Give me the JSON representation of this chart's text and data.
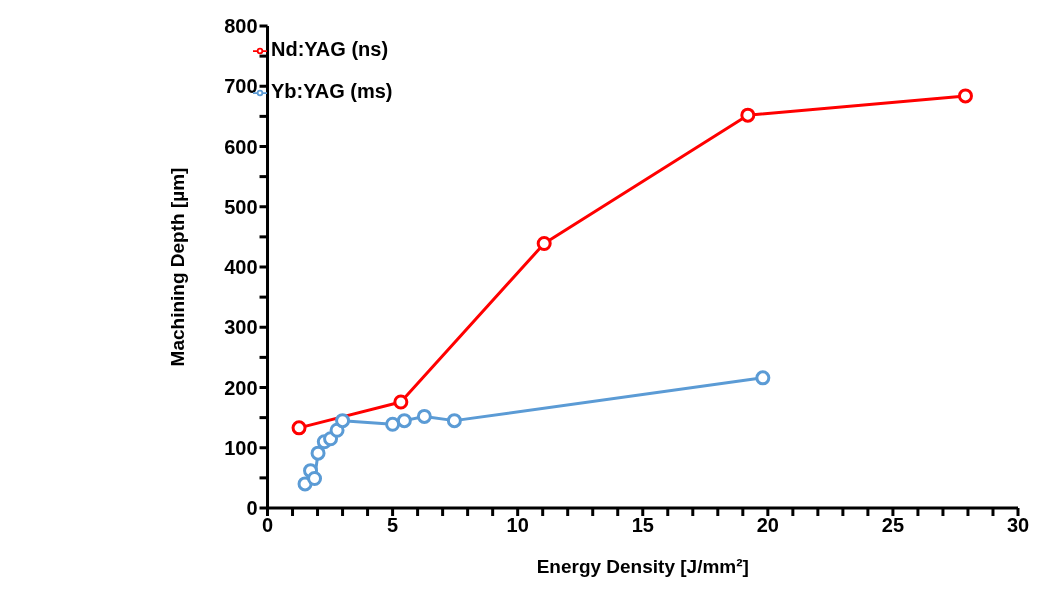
{
  "chart_data": {
    "type": "line",
    "xlabel": "Energy Density [J/mm²]",
    "ylabel": "Machining Depth [µm]",
    "xlim": [
      0,
      30
    ],
    "xticks": [
      0,
      {
        "value": 1,
        "label": null
      },
      {
        "value": 2,
        "label": null
      },
      {
        "value": 3,
        "label": null
      },
      {
        "value": 4,
        "label": null
      },
      5,
      {
        "value": 6,
        "label": null
      },
      {
        "value": 7,
        "label": null
      },
      {
        "value": 8,
        "label": null
      },
      {
        "value": 9,
        "label": null
      },
      10,
      {
        "value": 11,
        "label": null
      },
      {
        "value": 12,
        "label": null
      },
      {
        "value": 13,
        "label": null
      },
      {
        "value": 14,
        "label": null
      },
      15,
      {
        "value": 16,
        "label": null
      },
      {
        "value": 17,
        "label": null
      },
      {
        "value": 18,
        "label": null
      },
      {
        "value": 19,
        "label": null
      },
      20,
      {
        "value": 21,
        "label": null
      },
      {
        "value": 22,
        "label": null
      },
      {
        "value": 23,
        "label": null
      },
      {
        "value": 24,
        "label": null
      },
      25,
      {
        "value": 26,
        "label": null
      },
      {
        "value": 27,
        "label": null
      },
      {
        "value": 28,
        "label": null
      },
      {
        "value": 29,
        "label": null
      },
      30
    ],
    "ylim": [
      0,
      800
    ],
    "yticks": [
      0,
      {
        "value": 50,
        "label": null
      },
      100,
      {
        "value": 150,
        "label": null
      },
      200,
      {
        "value": 250,
        "label": null
      },
      300,
      {
        "value": 350,
        "label": null
      },
      400,
      {
        "value": 450,
        "label": null
      },
      500,
      {
        "value": 550,
        "label": null
      },
      600,
      {
        "value": 650,
        "label": null
      },
      700,
      {
        "value": 750,
        "label": null
      },
      800
    ],
    "grid": false,
    "legend": "top left",
    "marker": "circle",
    "line_style": "solid",
    "series": [
      {
        "name": "Yb:YAG (ms)",
        "color": "#5b9bd5",
        "x": [
          1.5,
          1.72,
          1.88,
          2.02,
          2.27,
          2.52,
          2.78,
          3.0,
          5.0,
          5.47,
          6.27,
          7.47,
          19.8
        ],
        "values": [
          40,
          62,
          49,
          91,
          110,
          115,
          129,
          145,
          139,
          145,
          152,
          145,
          216
        ]
      },
      {
        "name": "Nd:YAG (ns)",
        "color": "#ff0000",
        "x": [
          1.26,
          5.33,
          11.06,
          19.2,
          27.9
        ],
        "values": [
          133,
          176,
          439,
          652,
          684
        ]
      }
    ]
  }
}
